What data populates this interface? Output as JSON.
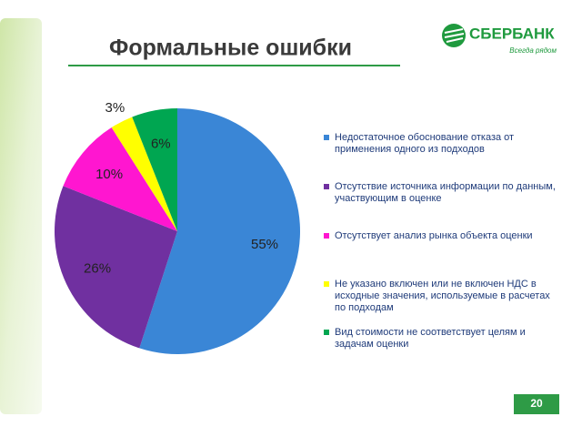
{
  "chart_data": {
    "type": "pie",
    "title": "Формальные ошибки",
    "categories": [
      "Недостаточное обоснование отказа от применения одного из подходов",
      "Отсутствие источника информации по данным, участвующим в оценке",
      "Отсутствует анализ рынка объекта оценки",
      "Не указано включен или не включен НДС в исходные значения, используемые в расчетах по подходам",
      "Вид стоимости не соответствует целям и задачам оценки"
    ],
    "values": [
      55,
      26,
      10,
      3,
      6
    ],
    "value_labels": [
      "55%",
      "26%",
      "10%",
      "3%",
      "6%"
    ],
    "colors": [
      "#3a86d6",
      "#7030a0",
      "#ff16d0",
      "#ffff00",
      "#00a651"
    ],
    "legend": "right"
  },
  "logo": {
    "name": "СБЕРБАНК",
    "slogan": "Всегда рядом"
  },
  "page_number": "20"
}
